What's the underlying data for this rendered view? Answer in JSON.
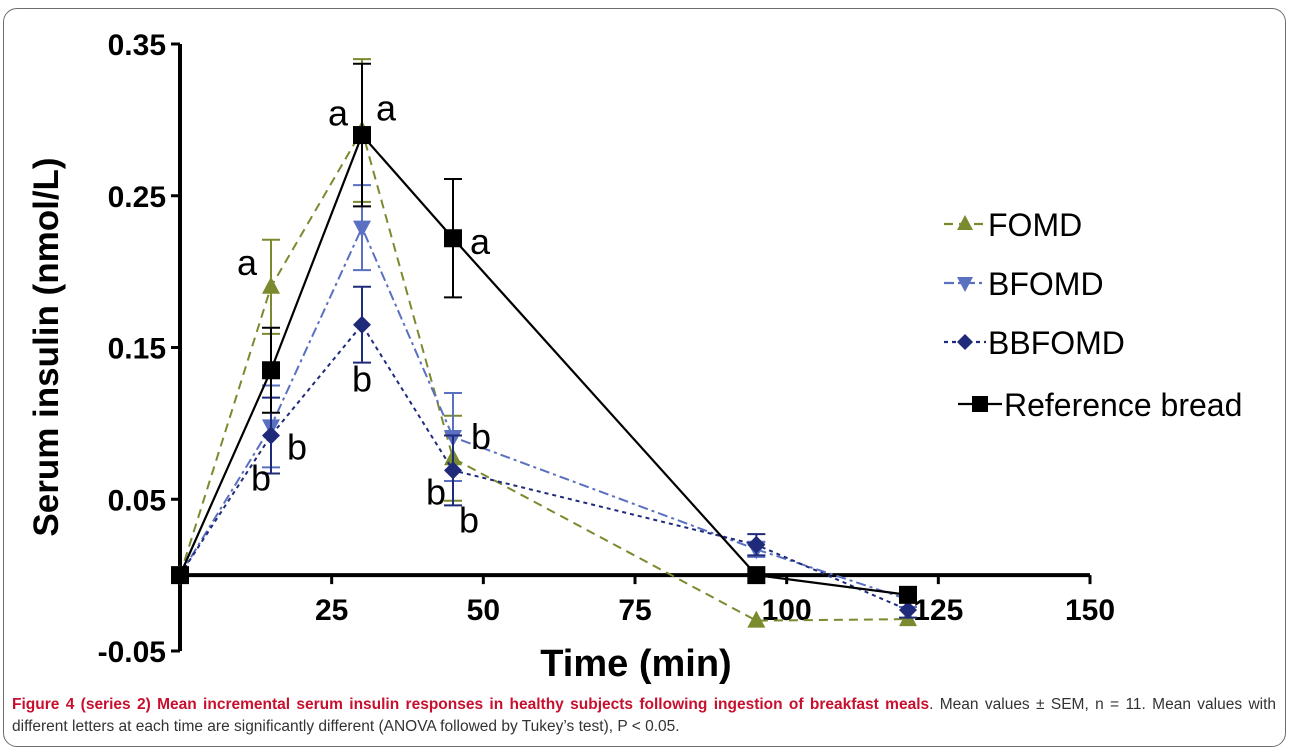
{
  "chart_data": {
    "type": "line",
    "xlabel": "Time (min)",
    "ylabel": "Serum insulin (nmol/L)",
    "xlim": [
      0,
      150
    ],
    "ylim": [
      -0.05,
      0.35
    ],
    "x_ticks": [
      25,
      50,
      75,
      100,
      125,
      150
    ],
    "x_tick_labels": [
      "25",
      "50",
      "75",
      "100",
      "125",
      "150"
    ],
    "y_ticks": [
      -0.05,
      0.05,
      0.15,
      0.25,
      0.35
    ],
    "y_tick_labels": [
      "-0.05",
      "0.05",
      "0.15",
      "0.25",
      "0.35"
    ],
    "grid": false,
    "legend_position": "right",
    "x": [
      0,
      15,
      30,
      45,
      95,
      120
    ],
    "series": [
      {
        "name": "FOMD",
        "color": "#7a8a2e",
        "marker": "triangle-up",
        "dash": "dashed",
        "values": [
          0,
          0.19,
          0.293,
          0.077,
          -0.03,
          -0.029
        ],
        "errors": [
          0,
          0.031,
          0.047,
          0.028,
          0,
          0
        ]
      },
      {
        "name": "BFOMD",
        "color": "#5a70c0",
        "marker": "triangle-down",
        "dash": "dashdot",
        "values": [
          0,
          0.098,
          0.229,
          0.091,
          0.017,
          -0.016
        ],
        "errors": [
          0,
          0.027,
          0.028,
          0.029,
          0.005,
          0.005
        ]
      },
      {
        "name": "BBFOMD",
        "color": "#1f2a7a",
        "marker": "diamond",
        "dash": "dotted",
        "values": [
          0,
          0.092,
          0.165,
          0.069,
          0.02,
          -0.023
        ],
        "errors": [
          0,
          0.025,
          0.025,
          0.023,
          0.007,
          0.005
        ]
      },
      {
        "name": "Reference bread",
        "color": "#000000",
        "marker": "square",
        "dash": "solid",
        "values": [
          0,
          0.135,
          0.29,
          0.222,
          0,
          -0.013
        ],
        "errors": [
          0,
          0.028,
          0.047,
          0.039,
          0,
          0
        ]
      }
    ],
    "annotations": [
      {
        "text": "a",
        "x": 15,
        "y": 0.19
      },
      {
        "text": "a",
        "x": 30,
        "y": 0.293
      },
      {
        "text": "a",
        "x": 30,
        "y": 0.293
      },
      {
        "text": "a",
        "x": 45,
        "y": 0.222
      },
      {
        "text": "b",
        "x": 15,
        "y": 0.092
      },
      {
        "text": "b",
        "x": 15,
        "y": 0.092
      },
      {
        "text": "b",
        "x": 30,
        "y": 0.165
      },
      {
        "text": "b",
        "x": 45,
        "y": 0.091
      },
      {
        "text": "b",
        "x": 45,
        "y": 0.069
      },
      {
        "text": "b",
        "x": 45,
        "y": 0.069
      }
    ]
  },
  "caption": {
    "figure_label": "Figure 4 (series 2) Mean incremental serum insulin responses in healthy subjects following ingestion of breakfast meals",
    "text": ". Mean values ± SEM, n = 11. Mean values with different letters at each time are significantly different (ANOVA followed by Tukey’s test), P < 0.05."
  }
}
